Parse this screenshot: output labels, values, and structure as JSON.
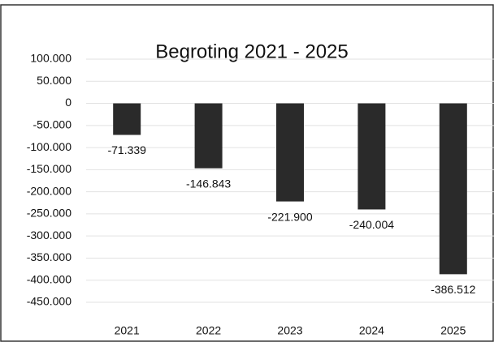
{
  "chart_data": {
    "type": "bar",
    "title": "Begroting 2021 - 2025",
    "categories": [
      "2021",
      "2022",
      "2023",
      "2024",
      "2025"
    ],
    "values": [
      -71339,
      -146843,
      -221900,
      -240004,
      -386512
    ],
    "value_labels": [
      "-71.339",
      "-146.843",
      "-221.900",
      "-240.004",
      "-386.512"
    ],
    "color": "#2a2a2a",
    "ylim": [
      -450000,
      100000
    ],
    "yticks": [
      {
        "value": 100000,
        "label": "100.000"
      },
      {
        "value": 50000,
        "label": "50.000"
      },
      0,
      {
        "value": -50000,
        "label": "-50.000"
      },
      {
        "value": -100000,
        "label": "-100.000"
      },
      {
        "value": -150000,
        "label": "-150.000"
      },
      {
        "value": -200000,
        "label": "-200.000"
      },
      {
        "value": -250000,
        "label": "-250.000"
      },
      {
        "value": -300000,
        "label": "-300.000"
      },
      {
        "value": -350000,
        "label": "-350.000"
      },
      {
        "value": -400000,
        "label": "-400.000"
      },
      {
        "value": -450000,
        "label": "-450.000"
      }
    ],
    "grid": true
  }
}
